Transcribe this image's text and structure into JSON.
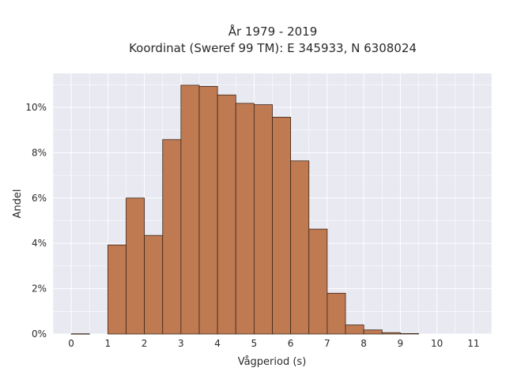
{
  "chart_data": {
    "type": "bar",
    "title_lines": [
      "År 1979 - 2019",
      "Koordinat (Sweref 99 TM): E 345933, N 6308024"
    ],
    "xlabel": "Vågperiod (s)",
    "ylabel": "Andel",
    "bin_width": 0.5,
    "bins": [
      {
        "x0": 0.0,
        "value": 0.01
      },
      {
        "x0": 1.0,
        "value": 3.93
      },
      {
        "x0": 1.5,
        "value": 6.0
      },
      {
        "x0": 2.0,
        "value": 4.35
      },
      {
        "x0": 2.5,
        "value": 8.58
      },
      {
        "x0": 3.0,
        "value": 10.98
      },
      {
        "x0": 3.5,
        "value": 10.93
      },
      {
        "x0": 4.0,
        "value": 10.55
      },
      {
        "x0": 4.5,
        "value": 10.18
      },
      {
        "x0": 5.0,
        "value": 10.12
      },
      {
        "x0": 5.5,
        "value": 9.57
      },
      {
        "x0": 6.0,
        "value": 7.64
      },
      {
        "x0": 6.5,
        "value": 4.63
      },
      {
        "x0": 7.0,
        "value": 1.8
      },
      {
        "x0": 7.5,
        "value": 0.4
      },
      {
        "x0": 8.0,
        "value": 0.18
      },
      {
        "x0": 8.5,
        "value": 0.06
      },
      {
        "x0": 9.0,
        "value": 0.02
      }
    ],
    "x_ticks": [
      0,
      1,
      2,
      3,
      4,
      5,
      6,
      7,
      8,
      9,
      10,
      11
    ],
    "x_tick_labels": [
      "0",
      "1",
      "2",
      "3",
      "4",
      "5",
      "6",
      "7",
      "8",
      "9",
      "10",
      "11"
    ],
    "y_ticks": [
      0,
      2,
      4,
      6,
      8,
      10
    ],
    "y_tick_labels": [
      "0%",
      "2%",
      "4%",
      "6%",
      "8%",
      "10%"
    ],
    "xlim": [
      -0.5,
      11.5
    ],
    "ylim": [
      0,
      11.5
    ],
    "grid": true,
    "colors": {
      "bar_fill": "#c07a52",
      "bar_edge": "#3d2618",
      "plot_background": "#e8e9f1",
      "grid": "#ffffff"
    }
  }
}
